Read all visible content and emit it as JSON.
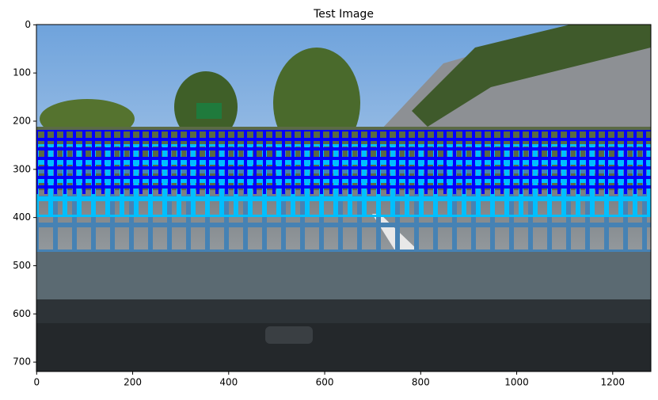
{
  "chart_data": {
    "type": "image",
    "title": "Test Image",
    "xlim": [
      -0.5,
      1279.5
    ],
    "ylim": [
      719.5,
      -0.5
    ],
    "xticks": [
      0,
      200,
      400,
      600,
      800,
      1000,
      1200
    ],
    "yticks": [
      0,
      100,
      200,
      300,
      400,
      500,
      600,
      700
    ]
  }
}
